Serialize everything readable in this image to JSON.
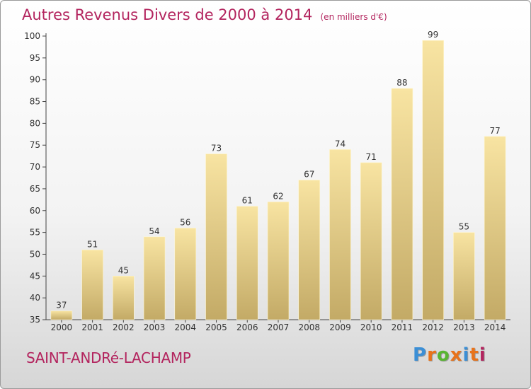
{
  "chart_data": {
    "type": "bar",
    "title": "Autres Revenus Divers de 2000 à 2014",
    "subtitle": "(en milliers d'€)",
    "categories": [
      "2000",
      "2001",
      "2002",
      "2003",
      "2004",
      "2005",
      "2006",
      "2007",
      "2008",
      "2009",
      "2010",
      "2011",
      "2012",
      "2013",
      "2014"
    ],
    "values": [
      37,
      51,
      45,
      54,
      56,
      73,
      61,
      62,
      67,
      74,
      71,
      88,
      99,
      55,
      77
    ],
    "ylim": [
      35,
      100
    ],
    "yticks": [
      35,
      40,
      45,
      50,
      55,
      60,
      65,
      70,
      75,
      80,
      85,
      90,
      95,
      100
    ],
    "grid": false,
    "bar_color_top": "#f8e4a2",
    "bar_color_bottom": "#c3aa66"
  },
  "footer": {
    "commune": "SAINT-ANDRé-LACHAMP",
    "logo_text": "Proxiti",
    "logo_colors": [
      "#3b8fd6",
      "#e8731b",
      "#58b531",
      "#e8731b",
      "#3b8fd6",
      "#e8731b",
      "#b3245e"
    ]
  }
}
